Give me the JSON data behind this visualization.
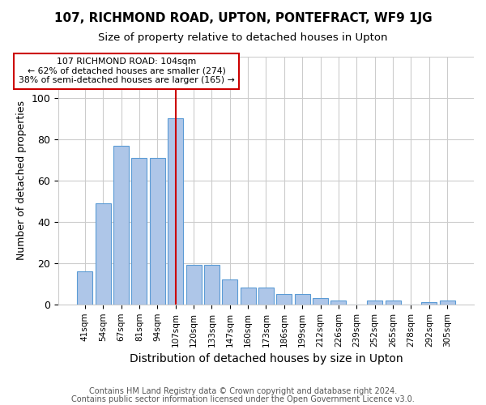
{
  "title": "107, RICHMOND ROAD, UPTON, PONTEFRACT, WF9 1JG",
  "subtitle": "Size of property relative to detached houses in Upton",
  "xlabel": "Distribution of detached houses by size in Upton",
  "ylabel": "Number of detached properties",
  "footnote1": "Contains HM Land Registry data © Crown copyright and database right 2024.",
  "footnote2": "Contains public sector information licensed under the Open Government Licence v3.0.",
  "annotation_line1": "107 RICHMOND ROAD: 104sqm",
  "annotation_line2": "← 62% of detached houses are smaller (274)",
  "annotation_line3": "38% of semi-detached houses are larger (165) →",
  "bar_labels": [
    "41sqm",
    "54sqm",
    "67sqm",
    "81sqm",
    "94sqm",
    "107sqm",
    "120sqm",
    "133sqm",
    "147sqm",
    "160sqm",
    "173sqm",
    "186sqm",
    "199sqm",
    "212sqm",
    "226sqm",
    "239sqm",
    "252sqm",
    "265sqm",
    "278sqm",
    "292sqm",
    "305sqm"
  ],
  "bar_values": [
    16,
    49,
    77,
    71,
    71,
    90,
    19,
    19,
    12,
    8,
    8,
    5,
    5,
    3,
    2,
    0,
    2,
    2,
    0,
    1,
    2
  ],
  "highlight_index": 5,
  "bar_color": "#aec6e8",
  "bar_edge_color": "#5b9bd5",
  "highlight_line_color": "#cc0000",
  "annotation_box_color": "#cc0000",
  "background_color": "#ffffff",
  "ylim": [
    0,
    120
  ],
  "yticks": [
    0,
    20,
    40,
    60,
    80,
    100,
    120
  ]
}
